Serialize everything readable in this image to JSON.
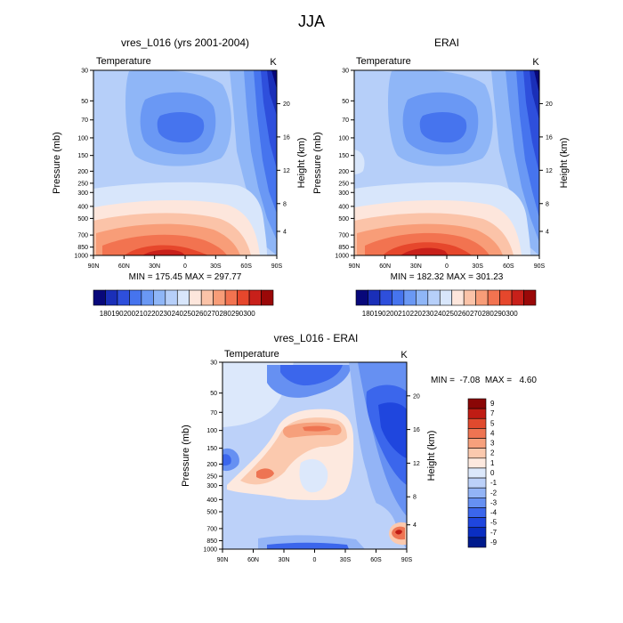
{
  "figure_title": "JJA",
  "colors": {
    "abs_scale": [
      "#08087a",
      "#1a2fb8",
      "#2e4fdc",
      "#4674ee",
      "#6a98f4",
      "#8fb6f7",
      "#b6cff9",
      "#d8e6fb",
      "#fde6dc",
      "#fbc3a8",
      "#f89d78",
      "#f27350",
      "#e6472c",
      "#c8201a",
      "#9a0808"
    ],
    "diff_scale": [
      "#001a8c",
      "#0a2ec2",
      "#1f46de",
      "#3b66ec",
      "#6690f2",
      "#93b4f6",
      "#bcd1f9",
      "#dce8fb",
      "#fde9df",
      "#fbc9ae",
      "#f6a07c",
      "#ee7452",
      "#e04a2e",
      "#c01c14",
      "#8a0606"
    ]
  },
  "chart_data": [
    {
      "type": "heatmap",
      "panel": "model",
      "title": "vres_L016 (yrs 2001-2004)",
      "left_label": "Temperature",
      "right_label": "K",
      "ylabel": "Pressure (mb)",
      "y2label": "Height (km)",
      "xticks": [
        "90N",
        "60N",
        "30N",
        "0",
        "30S",
        "60S",
        "90S"
      ],
      "yticks": [
        "30",
        "50",
        "70",
        "100",
        "150",
        "200",
        "250",
        "300",
        "400",
        "500",
        "700",
        "850",
        "1000"
      ],
      "y2ticks": [
        "20",
        "16",
        "12",
        "8",
        "4"
      ],
      "stats": "MIN = 175.45  MAX = 297.77",
      "min": 175.45,
      "max": 297.77
    },
    {
      "type": "heatmap",
      "panel": "obs",
      "title": "ERAI",
      "left_label": "Temperature",
      "right_label": "K",
      "ylabel": "Pressure (mb)",
      "y2label": "Height (km)",
      "xticks": [
        "90N",
        "60N",
        "30N",
        "0",
        "30S",
        "60S",
        "90S"
      ],
      "yticks": [
        "30",
        "50",
        "70",
        "100",
        "150",
        "200",
        "250",
        "300",
        "400",
        "500",
        "700",
        "850",
        "1000"
      ],
      "y2ticks": [
        "20",
        "16",
        "12",
        "8",
        "4"
      ],
      "stats": "MIN = 182.32  MAX = 301.23",
      "min": 182.32,
      "max": 301.23
    },
    {
      "type": "heatmap",
      "panel": "diff",
      "title": "vres_L016 - ERAI",
      "left_label": "Temperature",
      "right_label": "K",
      "ylabel": "Pressure (mb)",
      "y2label": "Height (km)",
      "xticks": [
        "90N",
        "60N",
        "30N",
        "0",
        "30S",
        "60S",
        "90S"
      ],
      "yticks": [
        "30",
        "50",
        "70",
        "100",
        "150",
        "200",
        "250",
        "300",
        "400",
        "500",
        "700",
        "850",
        "1000"
      ],
      "y2ticks": [
        "20",
        "16",
        "12",
        "8",
        "4"
      ],
      "stats": "MIN =  -7.08  MAX =   4.60",
      "min": -7.08,
      "max": 4.6
    }
  ],
  "colorbar_abs": {
    "labels": [
      "180",
      "190",
      "200",
      "210",
      "220",
      "230",
      "240",
      "250",
      "260",
      "270",
      "280",
      "290",
      "300"
    ]
  },
  "colorbar_diff": {
    "labels": [
      "9",
      "7",
      "5",
      "4",
      "3",
      "2",
      "1",
      "0",
      "-1",
      "-2",
      "-3",
      "-4",
      "-5",
      "-7",
      "-9"
    ]
  }
}
